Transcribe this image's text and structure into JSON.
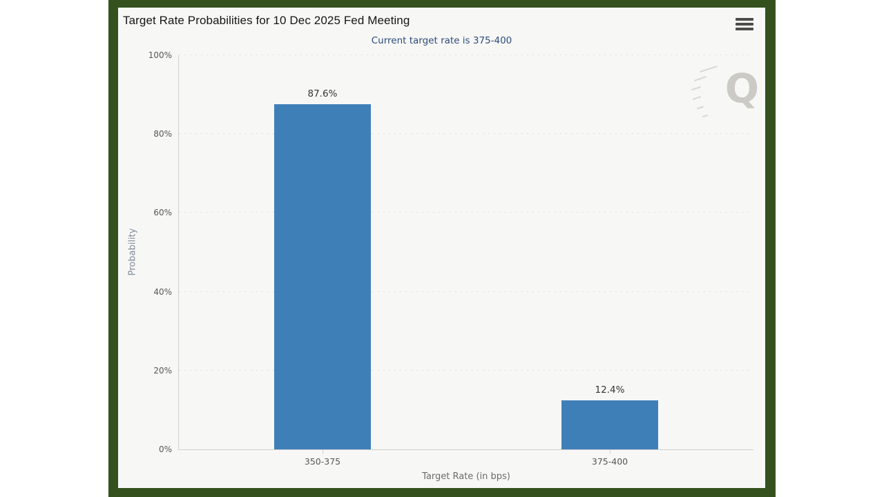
{
  "colors": {
    "frame_green": "#34511e",
    "panel_bg": "#f7f7f6",
    "bar_blue": "#3f7fb8",
    "subtitle_navy": "#2a4a7a"
  },
  "icons": {
    "menu": "hamburger-icon",
    "watermark": "quikstrike-q-logo"
  },
  "chart_data": {
    "type": "bar",
    "title": "Target Rate Probabilities for 10 Dec 2025 Fed Meeting",
    "subtitle": "Current target rate is 375-400",
    "categories": [
      "350-375",
      "375-400"
    ],
    "values": [
      87.6,
      12.4
    ],
    "value_labels": [
      "87.6%",
      "12.4%"
    ],
    "xlabel": "Target Rate (in bps)",
    "ylabel": "Probability",
    "ylim": [
      0,
      100
    ],
    "yticks": [
      "0%",
      "20%",
      "40%",
      "60%",
      "80%",
      "100%"
    ],
    "grid": "horizontal-dotted",
    "legend_position": "none",
    "bar_color": "#3f7fb8",
    "watermark_letter": "Q"
  }
}
